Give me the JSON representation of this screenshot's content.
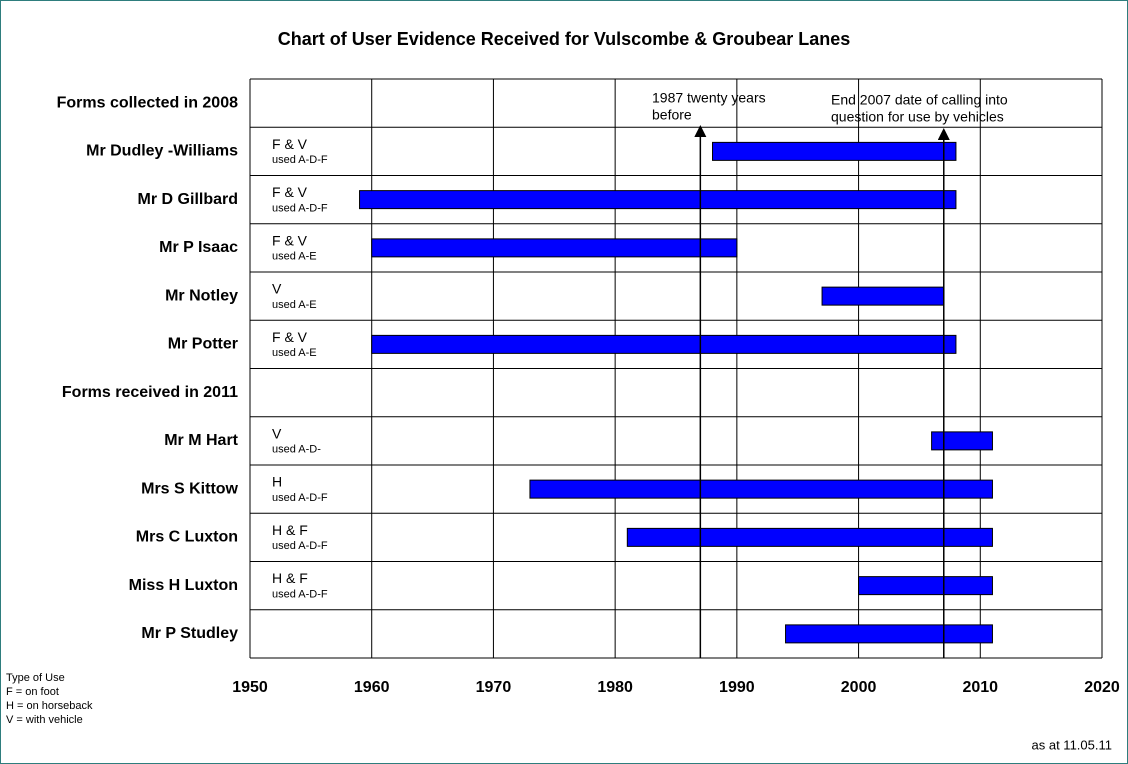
{
  "chart_data": {
    "type": "range_bar",
    "title": "Chart of User Evidence Received for Vulscombe & Groubear Lanes",
    "categories": [
      "Forms collected in 2008",
      "Mr Dudley -Williams",
      "Mr D Gillbard",
      "Mr P Isaac",
      "Mr Notley",
      "Mr Potter",
      "Forms received in 2011",
      "Mr M Hart",
      "Mrs S Kittow",
      "Mrs C Luxton",
      "Miss H Luxton",
      "Mr P Studley"
    ],
    "start": [
      null,
      1988,
      1959,
      1960,
      1997,
      1960,
      null,
      2006,
      1973,
      1981,
      2000,
      1994
    ],
    "end": [
      null,
      2008,
      2008,
      1990,
      2007,
      2008,
      null,
      2011,
      2011,
      2011,
      2011,
      2011
    ],
    "use": [
      null,
      "F & V",
      "F & V",
      "F & V",
      "V",
      "F & V",
      null,
      "V",
      "H",
      "H & F",
      "H & F",
      null
    ],
    "route": [
      null,
      "used A-D-F",
      "used A-D-F",
      "used A-E",
      "used A-E",
      "used A-E",
      null,
      "used A-D-",
      "used A-D-F",
      "used A-D-F",
      "used A-D-F",
      null
    ],
    "color": "#0000ff",
    "xlim": [
      1950,
      2020
    ],
    "xticks": [
      1950,
      1960,
      1970,
      1980,
      1990,
      2000,
      2010,
      2020
    ],
    "grid": true,
    "reference_lines": [
      {
        "value": 1987,
        "label_lines": [
          "1987 twenty years",
          "before"
        ]
      },
      {
        "value": 2007,
        "label_lines": [
          "End 2007 date of calling into",
          "question for use by vehicles"
        ]
      }
    ],
    "legend_lines": [
      "Type of Use",
      "F = on foot",
      "H = on horseback",
      "V = with vehicle"
    ],
    "footnote": "as at 11.05.11"
  }
}
